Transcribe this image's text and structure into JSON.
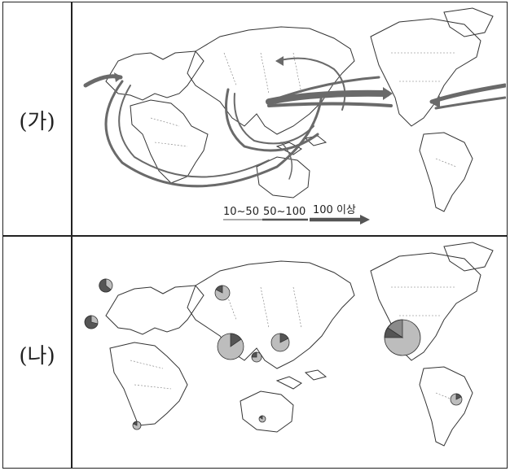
{
  "rows": [
    {
      "label": "(가)"
    },
    {
      "label": "(나)"
    }
  ],
  "legend": {
    "items": [
      "10~50",
      "50~100",
      "100 이상"
    ]
  },
  "colors": {
    "arrow": "#6a6a6a",
    "pie_light": "#bdbdbd",
    "pie_dark": "#555555",
    "pie_mid": "#8a8a8a",
    "land_outline": "#333333",
    "border_dotted": "#777777"
  }
}
